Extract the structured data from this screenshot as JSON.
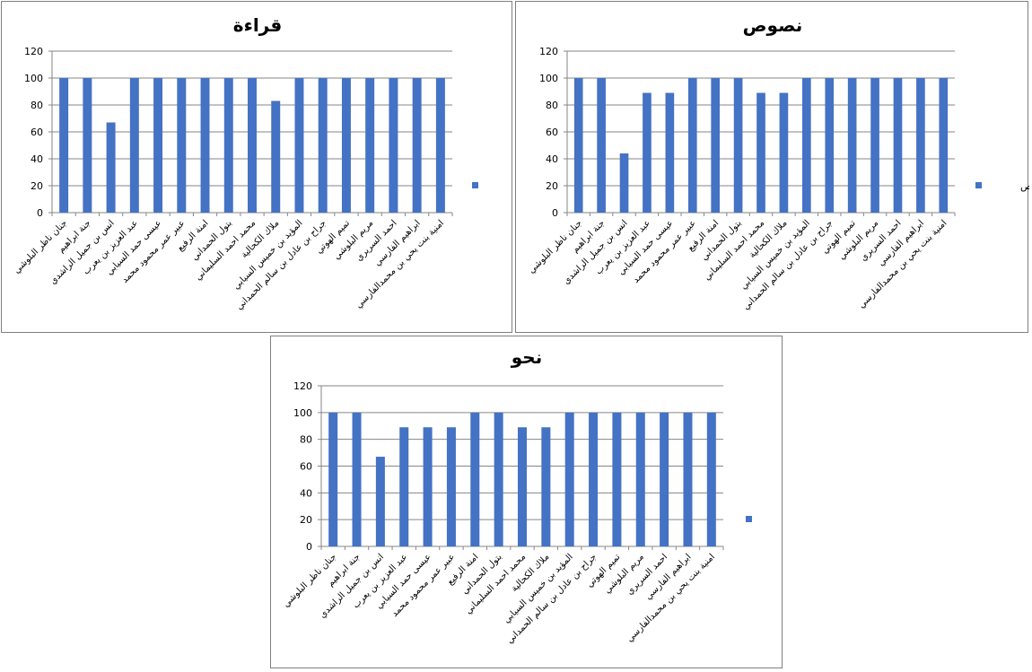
{
  "colors": {
    "bar": "#4472C4",
    "grid": "#868686",
    "axis": "#868686",
    "border": "#7f7f7f"
  },
  "chart_data": [
    {
      "type": "bar",
      "title": "قراءة",
      "categories": [
        "جنان ناظر البلوشي",
        "جنة ابراهيم",
        "انس بن جميل الراشدي",
        "عبد العزيز بن يعرب",
        "عيسى حمد السيابي",
        "عبير عمر محمود محمد",
        "امنة الرفيع",
        "بتول الحمداني",
        "محمد احمد السليماني",
        "ملاك الكحالية",
        "المؤيد بن خميس السيابي",
        "جراح بن عادل بن سالم الحمداني",
        "تميم الهوتي",
        "مريم البلوشي",
        "احمد السريري",
        "ابراهيم الفارسي",
        "امنية بنت يحي بن محمدالفارسي"
      ],
      "series": [
        {
          "name": "قراءة",
          "values": [
            100,
            100,
            67,
            100,
            100,
            100,
            100,
            100,
            100,
            83,
            100,
            100,
            100,
            100,
            100,
            100,
            100
          ]
        }
      ],
      "yticks": [
        "0",
        "20",
        "40",
        "60",
        "80",
        "100",
        "120"
      ],
      "ylim": [
        0,
        120
      ],
      "grid": true,
      "legend": "right"
    },
    {
      "type": "bar",
      "title": "نصوص",
      "categories": [
        "جنان ناظر البلوشي",
        "جنة ابراهيم",
        "انس بن جميل الراشدي",
        "عبد العزيز بن يعرب",
        "عيسى حمد السيابي",
        "عبير عمر محمود محمد",
        "امنة الرفيع",
        "بتول الحمداني",
        "محمد احمد السليماني",
        "ملاك الكحالية",
        "المؤيد بن خميس السيابي",
        "جراح بن عادل بن سالم الحمداني",
        "تميم الهوتي",
        "مريم البلوشي",
        "احمد السريري",
        "ابراهيم الفارسي",
        "امنية بنت يحي بن محمدالفارسي"
      ],
      "series": [
        {
          "name": "نصوص",
          "values": [
            100,
            100,
            44,
            89,
            89,
            100,
            100,
            100,
            89,
            89,
            100,
            100,
            100,
            100,
            100,
            100,
            100
          ]
        }
      ],
      "yticks": [
        "0",
        "20",
        "40",
        "60",
        "80",
        "100",
        "120"
      ],
      "ylim": [
        0,
        120
      ],
      "grid": true,
      "legend": "right"
    },
    {
      "type": "bar",
      "title": "نحو",
      "categories": [
        "جنان ناظر البلوشي",
        "جنة ابراهيم",
        "انس بن جميل الراشدي",
        "عبد العزيز بن يعرب",
        "عيسى حمد السيابي",
        "عبير عمر محمود محمد",
        "امنة الرفيع",
        "بتول الحمداني",
        "محمد احمد السليماني",
        "ملاك الكحالية",
        "المؤيد بن خميس السيابي",
        "جراح بن عادل بن سالم الحمداني",
        "تميم الهوتي",
        "مريم البلوشي",
        "احمد السريري",
        "ابراهيم الفارسي",
        "امنية بنت يحي بن محمدالفارسي"
      ],
      "series": [
        {
          "name": "نحو",
          "values": [
            100,
            100,
            67,
            89,
            89,
            89,
            100,
            100,
            89,
            89,
            100,
            100,
            100,
            100,
            100,
            100,
            100
          ]
        }
      ],
      "yticks": [
        "0",
        "20",
        "40",
        "60",
        "80",
        "100",
        "120"
      ],
      "ylim": [
        0,
        120
      ],
      "grid": true,
      "legend": "right"
    }
  ]
}
